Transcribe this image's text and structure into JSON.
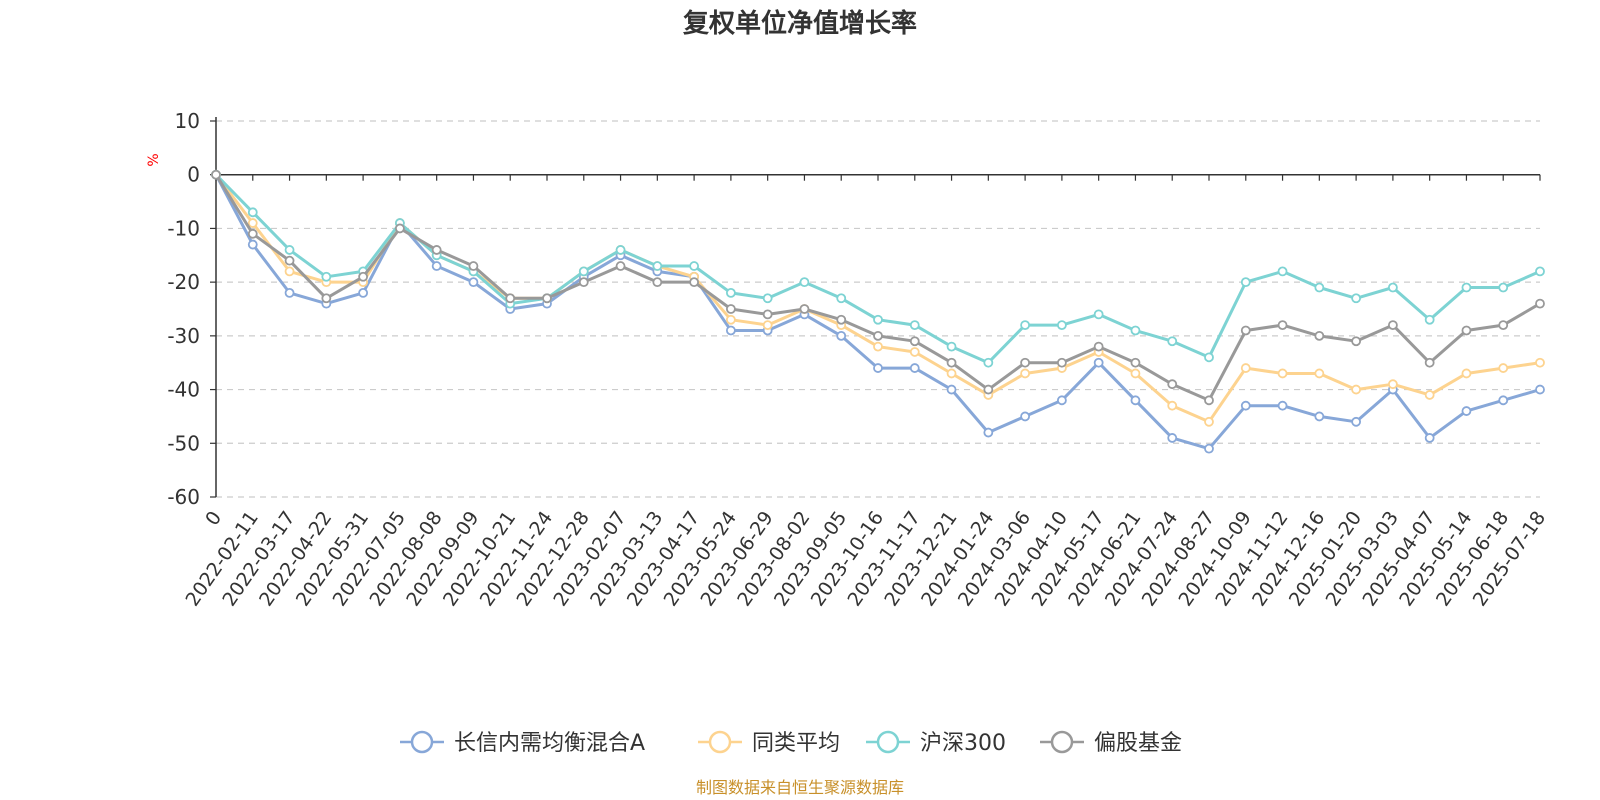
{
  "chart_data": {
    "type": "line",
    "title": "复权单位净值增长率",
    "y_unit": "%",
    "ylim": [
      -60,
      10
    ],
    "y_ticks": [
      "10",
      "0",
      "-10",
      "-20",
      "-30",
      "-40",
      "-50",
      "-60"
    ],
    "y_tick_values": [
      10,
      0,
      -10,
      -20,
      -30,
      -40,
      -50,
      -60
    ],
    "x_tick_labels": [
      "0",
      "2022-02-11",
      "2022-03-17",
      "2022-04-22",
      "2022-05-31",
      "2022-07-05",
      "2022-08-08",
      "2022-09-09",
      "2022-10-21",
      "2022-11-24",
      "2022-12-28",
      "2023-02-07",
      "2023-03-13",
      "2023-04-17",
      "2023-05-24",
      "2023-06-29",
      "2023-08-02",
      "2023-09-05",
      "2023-10-16",
      "2023-11-17",
      "2023-12-21",
      "2024-01-24",
      "2024-03-06",
      "2024-04-10",
      "2024-05-17",
      "2024-06-21",
      "2024-07-24",
      "2024-08-27",
      "2024-10-09",
      "2024-11-12",
      "2024-12-16",
      "2025-01-20",
      "2025-03-03",
      "2025-04-07",
      "2025-05-14",
      "2025-06-18",
      "2025-07-18"
    ],
    "grid": "horizontal dashed",
    "legend_position": "bottom-center",
    "x": [
      "0",
      "2022-02-11",
      "2022-03-17",
      "2022-04-22",
      "2022-05-31",
      "2022-07-05",
      "2022-08-08",
      "2022-09-09",
      "2022-10-21",
      "2022-11-24",
      "2022-12-28",
      "2023-02-07",
      "2023-03-13",
      "2023-04-17",
      "2023-05-24",
      "2023-06-29",
      "2023-08-02",
      "2023-09-05",
      "2023-10-16",
      "2023-11-17",
      "2023-12-21",
      "2024-01-24",
      "2024-03-06",
      "2024-04-10",
      "2024-05-17",
      "2024-06-21",
      "2024-07-24",
      "2024-08-27",
      "2024-10-09",
      "2024-11-12",
      "2024-12-16",
      "2025-01-20",
      "2025-03-03",
      "2025-04-07",
      "2025-05-14",
      "2025-06-18",
      "2025-07-18"
    ],
    "series": [
      {
        "name": "长信内需均衡混合A",
        "color": "#87a7d8",
        "values": [
          0,
          -13,
          -22,
          -24,
          -22,
          -9,
          -17,
          -20,
          -25,
          -24,
          -19,
          -15,
          -18,
          -19,
          -29,
          -29,
          -26,
          -30,
          -36,
          -36,
          -40,
          -48,
          -45,
          -42,
          -35,
          -42,
          -49,
          -51,
          -43,
          -43,
          -45,
          -46,
          -40,
          -49,
          -44,
          -42,
          -40
        ]
      },
      {
        "name": "同类平均",
        "color": "#fdd38f",
        "values": [
          0,
          -9,
          -18,
          -20,
          -20,
          -9,
          -15,
          -18,
          -23,
          -23,
          -18,
          -14,
          -17,
          -19,
          -27,
          -28,
          -25,
          -28,
          -32,
          -33,
          -37,
          -41,
          -37,
          -36,
          -33,
          -37,
          -43,
          -46,
          -36,
          -37,
          -37,
          -40,
          -39,
          -41,
          -37,
          -36,
          -35
        ]
      },
      {
        "name": "沪深300",
        "color": "#7dd3d3",
        "values": [
          0,
          -7,
          -14,
          -19,
          -18,
          -9,
          -15,
          -18,
          -24,
          -23,
          -18,
          -14,
          -17,
          -17,
          -22,
          -23,
          -20,
          -23,
          -27,
          -28,
          -32,
          -35,
          -28,
          -28,
          -26,
          -29,
          -31,
          -34,
          -20,
          -18,
          -21,
          -23,
          -21,
          -27,
          -21,
          -21,
          -18
        ]
      },
      {
        "name": "偏股基金",
        "color": "#999999",
        "values": [
          0,
          -11,
          -16,
          -23,
          -19,
          -10,
          -14,
          -17,
          -23,
          -23,
          -20,
          -17,
          -20,
          -20,
          -25,
          -26,
          -25,
          -27,
          -30,
          -31,
          -35,
          -40,
          -35,
          -35,
          -32,
          -35,
          -39,
          -42,
          -29,
          -28,
          -30,
          -31,
          -28,
          -35,
          -29,
          -28,
          -24
        ]
      }
    ]
  },
  "legend": [
    {
      "label": "长信内需均衡混合A",
      "color": "#87a7d8"
    },
    {
      "label": "同类平均",
      "color": "#fdd38f"
    },
    {
      "label": "沪深300",
      "color": "#7dd3d3"
    },
    {
      "label": "偏股基金",
      "color": "#999999"
    }
  ],
  "source_note": "制图数据来自恒生聚源数据库"
}
